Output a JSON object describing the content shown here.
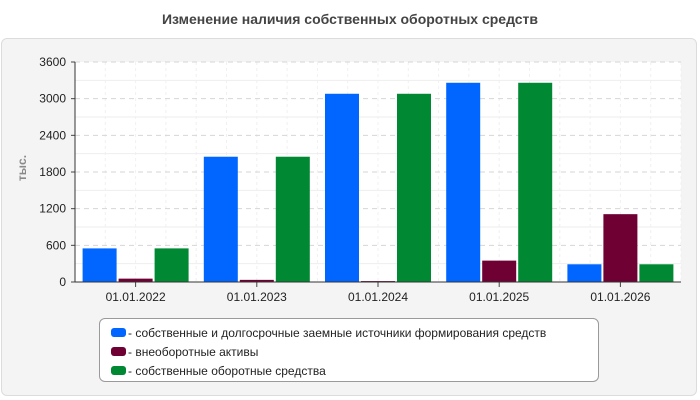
{
  "chart_data": {
    "type": "bar",
    "title": "Изменение наличия собственных оборотных средств",
    "ylabel": "тыс.",
    "xlabel": "",
    "categories": [
      "01.01.2022",
      "01.01.2023",
      "01.01.2024",
      "01.01.2025",
      "01.01.2026"
    ],
    "ylim": [
      0,
      3600
    ],
    "yticks": [
      0,
      600,
      1200,
      1800,
      2400,
      3000,
      3600
    ],
    "grid": true,
    "legend_position": "bottom",
    "series": [
      {
        "name": "собственные и долгосрочные заемные источники формирования средств",
        "color": "#0066ff",
        "values": [
          550,
          2050,
          3080,
          3260,
          290
        ]
      },
      {
        "name": "внеоборотные активы",
        "color": "#6e0033",
        "values": [
          55,
          35,
          15,
          350,
          1110
        ]
      },
      {
        "name": "собственные оборотные средства",
        "color": "#008833",
        "values": [
          550,
          2050,
          3080,
          3260,
          290
        ]
      }
    ]
  }
}
